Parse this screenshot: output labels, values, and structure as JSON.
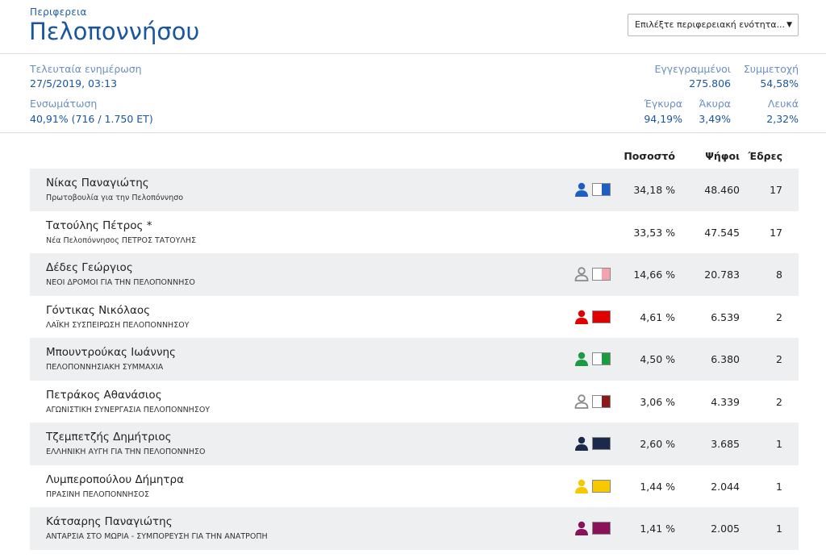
{
  "header": {
    "region_label": "Περιφερεια",
    "region_name": "Πελοποννήσου",
    "select": {
      "value": "Επιλέξτε περιφερειακή ενότητα...",
      "arrow": "▼"
    }
  },
  "stats": {
    "last_update_label": "Τελευταία ενημέρωση",
    "last_update_value": "27/5/2019, 03:13",
    "integration_label": "Ενσωμάτωση",
    "integration_value": "40,91% (716 / 1.750 ΕΤ)",
    "registered_label": "Εγγεγραμμένοι",
    "registered_value": "275.806",
    "turnout_label": "Συμμετοχή",
    "turnout_value": "54,58%",
    "valid_label": "Έγκυρα",
    "valid_value": "94,19%",
    "invalid_label": "Άκυρα",
    "invalid_value": "3,49%",
    "blank_label": "Λευκά",
    "blank_value": "2,32%"
  },
  "table": {
    "col_percent": "Ποσοστό",
    "col_votes": "Ψήφοι",
    "col_seats": "Έδρες",
    "rows": [
      {
        "candidate": "Νίκας Παναγιώτης",
        "party": "Πρωτοβουλία για την Πελοπόννησο",
        "percent": "34,18 %",
        "votes": "48.460",
        "seats": "17",
        "icon": "person-icon",
        "person_color": "#1f5fc4",
        "swatch_color": "#1f5fc4",
        "swatch_fill": 0.5
      },
      {
        "candidate": "Τατούλης Πέτρος *",
        "party": "Νέα Πελοπόννησος ΠΕΤΡΟΣ ΤΑΤΟΥΛΗΣ",
        "percent": "33,53 %",
        "votes": "47.545",
        "seats": "17",
        "icon": "",
        "person_color": "",
        "swatch_color": "",
        "swatch_fill": 0
      },
      {
        "candidate": "Δέδες Γεώργιος",
        "party": "ΝΕΟΙ ΔΡΟΜΟΙ ΓΙΑ ΤΗΝ ΠΕΛΟΠΟΝΝΗΣΟ",
        "percent": "14,66 %",
        "votes": "20.783",
        "seats": "8",
        "icon": "person-outline-icon",
        "person_color": "#8a8a8a",
        "swatch_color": "#f2a3ad",
        "swatch_fill": 0.5
      },
      {
        "candidate": "Γόντικας Νικόλαος",
        "party": "ΛΑΪΚΗ ΣΥΣΠΕΙΡΩΣΗ ΠΕΛΟΠΟΝΝΗΣΟΥ",
        "percent": "4,61 %",
        "votes": "6.539",
        "seats": "2",
        "icon": "person-icon",
        "person_color": "#e00000",
        "swatch_color": "#e00000",
        "swatch_fill": 1.0
      },
      {
        "candidate": "Μπουντρούκας Ιωάννης",
        "party": "ΠΕΛΟΠΟΝΝΗΣΙΑΚΗ ΣΥΜΜΑΧΙΑ",
        "percent": "4,50 %",
        "votes": "6.380",
        "seats": "2",
        "icon": "person-icon",
        "person_color": "#1e9a43",
        "swatch_color": "#1e9a43",
        "swatch_fill": 0.5
      },
      {
        "candidate": "Πετράκος Αθανάσιος",
        "party": "ΑΓΩΝΙΣΤΙΚΗ ΣΥΝΕΡΓΑΣΙΑ ΠΕΛΟΠΟΝΝΗΣΟΥ",
        "percent": "3,06 %",
        "votes": "4.339",
        "seats": "2",
        "icon": "person-outline-icon",
        "person_color": "#8a8a8a",
        "swatch_color": "#8a1a1a",
        "swatch_fill": 0.5
      },
      {
        "candidate": "Τζεμπετζής Δημήτριος",
        "party": "ΕΛΛΗΝΙΚΗ ΑΥΓΗ ΓΙΑ ΤΗΝ ΠΕΛΟΠΟΝΝΗΣΟ",
        "percent": "2,60 %",
        "votes": "3.685",
        "seats": "1",
        "icon": "person-icon",
        "person_color": "#1b2a4a",
        "swatch_color": "#1b2a4a",
        "swatch_fill": 1.0
      },
      {
        "candidate": "Λυμπεροπούλου Δήμητρα",
        "party": "ΠΡΑΣΙΝΗ ΠΕΛΟΠΟΝΝΗΣΟΣ",
        "percent": "1,44 %",
        "votes": "2.044",
        "seats": "1",
        "icon": "person-icon",
        "person_color": "#f5c800",
        "swatch_color": "#f5c800",
        "swatch_fill": 1.0
      },
      {
        "candidate": "Κάτσαρης Παναγιώτης",
        "party": "ΑΝΤΑΡΣΙΑ ΣΤΟ ΜΩΡΙΑ - ΣΥΜΠΟΡΕΥΣΗ ΓΙΑ ΤΗΝ ΑΝΑΤΡΟΠΗ",
        "percent": "1,41 %",
        "votes": "2.005",
        "seats": "1",
        "icon": "person-icon",
        "person_color": "#8a1258",
        "swatch_color": "#8a1258",
        "swatch_fill": 1.0
      }
    ]
  }
}
